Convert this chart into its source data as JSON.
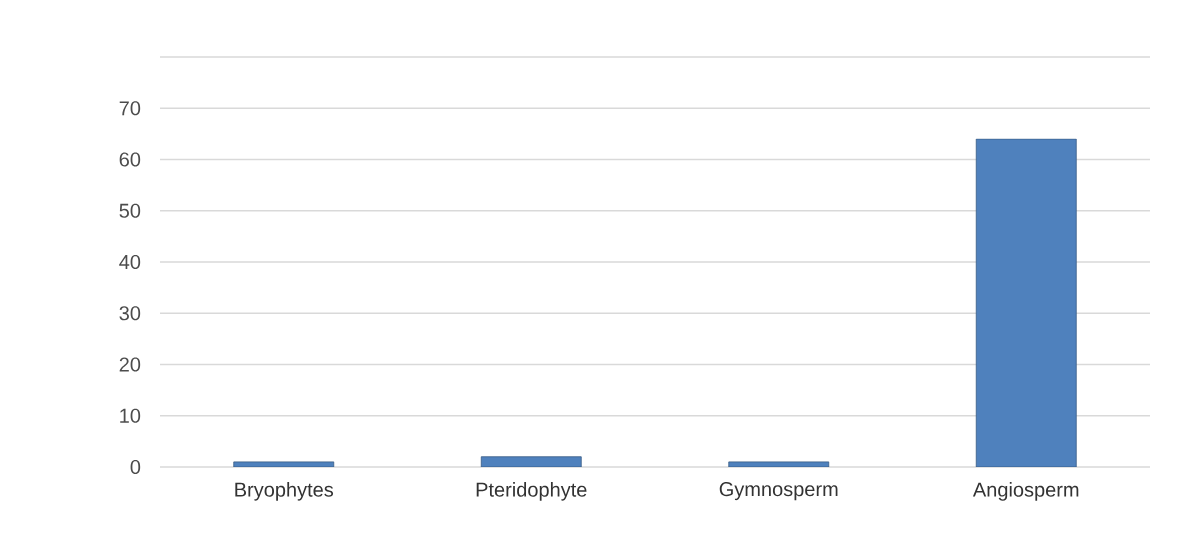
{
  "chart_data": {
    "type": "bar",
    "categories": [
      "Bryophytes",
      "Pteridophyte",
      "Gymnosperm",
      "Angiosperm"
    ],
    "values": [
      1,
      2,
      1,
      64
    ],
    "color": "#4f81bd",
    "ylim": [
      0,
      80
    ],
    "yticks": [
      0,
      10,
      20,
      30,
      40,
      50,
      60,
      70,
      {
        "value": 80,
        "label": null
      }
    ],
    "grid": "y"
  }
}
